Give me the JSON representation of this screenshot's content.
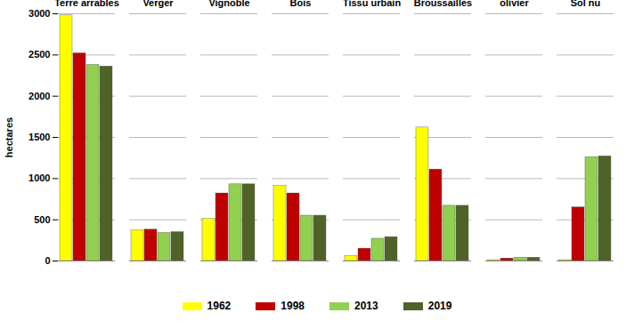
{
  "chart_data": {
    "type": "bar",
    "y_label": "hectares",
    "categories": [
      "Terre arrables",
      "Verger",
      "Vignoble",
      "Bois",
      "Tissu urbain",
      "Broussailles",
      "olivier",
      "Sol nu"
    ],
    "series": [
      {
        "name": "1962",
        "color": "#ffff00",
        "values": [
          2980,
          370,
          510,
          910,
          60,
          1620,
          10,
          10
        ]
      },
      {
        "name": "1998",
        "color": "#c00000",
        "values": [
          2520,
          380,
          820,
          820,
          150,
          1110,
          30,
          650
        ]
      },
      {
        "name": "2013",
        "color": "#92d050",
        "values": [
          2380,
          340,
          930,
          550,
          270,
          670,
          40,
          1260
        ]
      },
      {
        "name": "2019",
        "color": "#4f6228",
        "values": [
          2360,
          350,
          930,
          550,
          290,
          670,
          40,
          1270
        ]
      }
    ],
    "ylim": [
      0,
      3000
    ],
    "yticks": [
      0,
      500,
      1000,
      1500,
      2000,
      2500,
      3000
    ],
    "grid": true,
    "legend": "bottom"
  }
}
